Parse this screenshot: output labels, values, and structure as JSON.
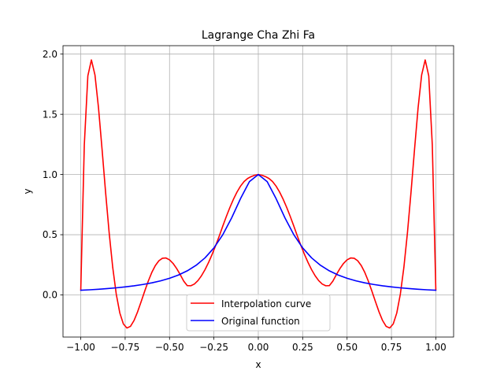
{
  "chart_data": {
    "type": "line",
    "title": "Lagrange Cha Zhi Fa",
    "xlabel": "x",
    "ylabel": "y",
    "xlim": [
      -1.1,
      1.1
    ],
    "ylim": [
      -0.35,
      2.07
    ],
    "x_ticks": [
      -1.0,
      -0.75,
      -0.5,
      -0.25,
      0.0,
      0.25,
      0.5,
      0.75,
      1.0
    ],
    "x_tick_labels": [
      "−1.00",
      "−0.75",
      "−0.50",
      "−0.25",
      "0.00",
      "0.25",
      "0.50",
      "0.75",
      "1.00"
    ],
    "y_ticks": [
      0.0,
      0.5,
      1.0,
      1.5,
      2.0
    ],
    "y_tick_labels": [
      "0.0",
      "0.5",
      "1.0",
      "1.5",
      "2.0"
    ],
    "grid": true,
    "legend_position": "lower-center",
    "series": [
      {
        "name": "Interpolation curve",
        "color": "#ff0000",
        "x": [
          -1.0,
          -0.98,
          -0.96,
          -0.94,
          -0.92,
          -0.9,
          -0.88,
          -0.86,
          -0.84,
          -0.82,
          -0.8,
          -0.78,
          -0.76,
          -0.74,
          -0.72,
          -0.7,
          -0.68,
          -0.66,
          -0.64,
          -0.62,
          -0.6,
          -0.58,
          -0.56,
          -0.54,
          -0.52,
          -0.5,
          -0.48,
          -0.46,
          -0.44,
          -0.42,
          -0.4,
          -0.38,
          -0.36,
          -0.34,
          -0.32,
          -0.3,
          -0.28,
          -0.26,
          -0.24,
          -0.22,
          -0.2,
          -0.18,
          -0.16,
          -0.14,
          -0.12,
          -0.1,
          -0.08,
          -0.06,
          -0.04,
          -0.02,
          0.0,
          0.02,
          0.04,
          0.06,
          0.08,
          0.1,
          0.12,
          0.14,
          0.16,
          0.18,
          0.2,
          0.22,
          0.24,
          0.26,
          0.28,
          0.3,
          0.32,
          0.34,
          0.36,
          0.38,
          0.4,
          0.42,
          0.44,
          0.46,
          0.48,
          0.5,
          0.52,
          0.54,
          0.56,
          0.58,
          0.6,
          0.62,
          0.64,
          0.66,
          0.68,
          0.7,
          0.72,
          0.74,
          0.76,
          0.78,
          0.8,
          0.82,
          0.84,
          0.86,
          0.88,
          0.9,
          0.92,
          0.94,
          0.96,
          0.98,
          1.0
        ],
        "y": [
          0.0385,
          1.2451,
          1.8197,
          1.9516,
          1.8271,
          1.5534,
          1.2093,
          0.8502,
          0.5153,
          0.2294,
          0.0059,
          -0.1501,
          -0.2411,
          -0.2746,
          -0.2612,
          -0.2128,
          -0.1411,
          -0.0568,
          0.0306,
          0.1136,
          0.1861,
          0.2436,
          0.2834,
          0.3043,
          0.3066,
          0.2915,
          0.2615,
          0.2196,
          0.1693,
          0.1143,
          0.0769,
          0.0759,
          0.0904,
          0.1188,
          0.1592,
          0.21,
          0.2697,
          0.3369,
          0.4103,
          0.4888,
          0.5718,
          0.6514,
          0.7263,
          0.7945,
          0.8542,
          0.9037,
          0.9416,
          0.9672,
          0.9829,
          0.9942,
          1.0,
          0.9942,
          0.9829,
          0.9672,
          0.9416,
          0.9037,
          0.8542,
          0.7945,
          0.7263,
          0.6514,
          0.5718,
          0.4888,
          0.4103,
          0.3369,
          0.2697,
          0.21,
          0.1592,
          0.1188,
          0.0904,
          0.0759,
          0.0769,
          0.1143,
          0.1693,
          0.2196,
          0.2615,
          0.2915,
          0.3066,
          0.3043,
          0.2834,
          0.2436,
          0.1861,
          0.1136,
          0.0306,
          -0.0568,
          -0.1411,
          -0.2128,
          -0.2612,
          -0.2746,
          -0.2411,
          -0.1501,
          0.0059,
          0.2294,
          0.5153,
          0.8502,
          1.2093,
          1.5534,
          1.8271,
          1.9516,
          1.8197,
          1.2451,
          0.0385
        ]
      },
      {
        "name": "Original function",
        "color": "#0000ff",
        "x": [
          -1.0,
          -0.95,
          -0.9,
          -0.85,
          -0.8,
          -0.75,
          -0.7,
          -0.65,
          -0.6,
          -0.55,
          -0.5,
          -0.45,
          -0.4,
          -0.35,
          -0.3,
          -0.25,
          -0.2,
          -0.15,
          -0.1,
          -0.05,
          0.0,
          0.05,
          0.1,
          0.15,
          0.2,
          0.25,
          0.3,
          0.35,
          0.4,
          0.45,
          0.5,
          0.55,
          0.6,
          0.65,
          0.7,
          0.75,
          0.8,
          0.85,
          0.9,
          0.95,
          1.0
        ],
        "y": [
          0.0385,
          0.0424,
          0.0471,
          0.0525,
          0.0588,
          0.0664,
          0.0755,
          0.0865,
          0.1,
          0.1168,
          0.1379,
          0.165,
          0.2,
          0.2462,
          0.3077,
          0.3902,
          0.5,
          0.64,
          0.8,
          0.9412,
          1.0,
          0.9412,
          0.8,
          0.64,
          0.5,
          0.3902,
          0.3077,
          0.2462,
          0.2,
          0.165,
          0.1379,
          0.1168,
          0.1,
          0.0865,
          0.0755,
          0.0664,
          0.0588,
          0.0525,
          0.0471,
          0.0424,
          0.0385
        ]
      }
    ]
  }
}
